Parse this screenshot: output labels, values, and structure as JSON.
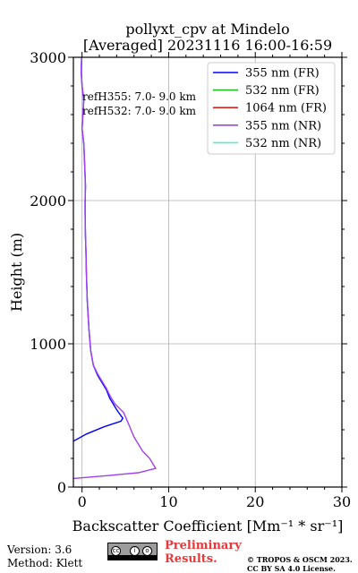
{
  "title_line1": "pollyxt_cpv at Mindelo",
  "title_line2": "[Averaged] 20231116 16:00-16:59",
  "footer": {
    "version": "Version: 3.6",
    "method": "Method: Klett",
    "preliminary_1": "Preliminary",
    "preliminary_2": "Results.",
    "copyright_1": "© TROPOS & OSCM 2023.",
    "copyright_2": "CC BY SA 4.0 License.",
    "preliminary_color": "#e8383a"
  },
  "chart_data": {
    "type": "line",
    "xlabel": "Backscatter Coefficient [Mm⁻¹ * sr⁻¹]",
    "ylabel": "Height (m)",
    "xlim": [
      -1,
      30
    ],
    "ylim": [
      0,
      3000
    ],
    "xticks": [
      0,
      10,
      20,
      30
    ],
    "xtick_labels": [
      "0",
      "10",
      "20",
      "30"
    ],
    "yticks": [
      0,
      1000,
      2000,
      3000
    ],
    "ytick_labels": [
      "0",
      "1000",
      "2000",
      "3000"
    ],
    "grid": true,
    "legend_position": "top-right",
    "annotations": [
      "refH355:  7.0- 9.0 km",
      "refH532:  7.0- 9.0 km"
    ],
    "series": [
      {
        "name": "355 nm (FR)",
        "color": "#0000ff",
        "x": [
          -1.0,
          0.5,
          2.5,
          4.5,
          4.7,
          4.0,
          3.2,
          2.8,
          2.3,
          1.8,
          1.3,
          1.0,
          0.8,
          0.6,
          0.5,
          0.45,
          0.4,
          0.35,
          0.35,
          0.4,
          0.3,
          0.2,
          0.0,
          0.1,
          0.2,
          0.0,
          -0.1,
          -0.05
        ],
        "y": [
          320,
          370,
          420,
          460,
          480,
          540,
          620,
          680,
          730,
          780,
          850,
          950,
          1100,
          1300,
          1500,
          1650,
          1750,
          1900,
          2000,
          2100,
          2250,
          2400,
          2500,
          2600,
          2700,
          2800,
          2900,
          3000
        ]
      },
      {
        "name": "532 nm (FR)",
        "color": "#22bb22",
        "x": [],
        "y": []
      },
      {
        "name": "1064 nm (FR)",
        "color": "#dd2222",
        "x": [],
        "y": []
      },
      {
        "name": "355 nm (NR)",
        "color": "#a040f0",
        "x": [
          -1.0,
          3.0,
          6.5,
          8.5,
          8.2,
          7.8,
          7.0,
          6.0,
          5.3,
          4.8,
          3.8,
          3.2,
          2.8,
          2.3,
          1.8,
          1.3,
          1.0,
          0.8,
          0.6,
          0.5,
          0.45,
          0.4,
          0.35,
          0.35,
          0.4,
          0.3,
          0.2,
          0.0,
          0.1,
          0.2,
          0.0,
          -0.1,
          -0.05
        ],
        "y": [
          60,
          80,
          100,
          130,
          160,
          200,
          250,
          350,
          450,
          520,
          580,
          640,
          690,
          740,
          790,
          850,
          950,
          1100,
          1300,
          1500,
          1650,
          1750,
          1900,
          2000,
          2100,
          2250,
          2400,
          2500,
          2600,
          2700,
          2800,
          2900,
          3000
        ]
      },
      {
        "name": "532 nm (NR)",
        "color": "#55eecc",
        "x": [],
        "y": []
      }
    ]
  }
}
